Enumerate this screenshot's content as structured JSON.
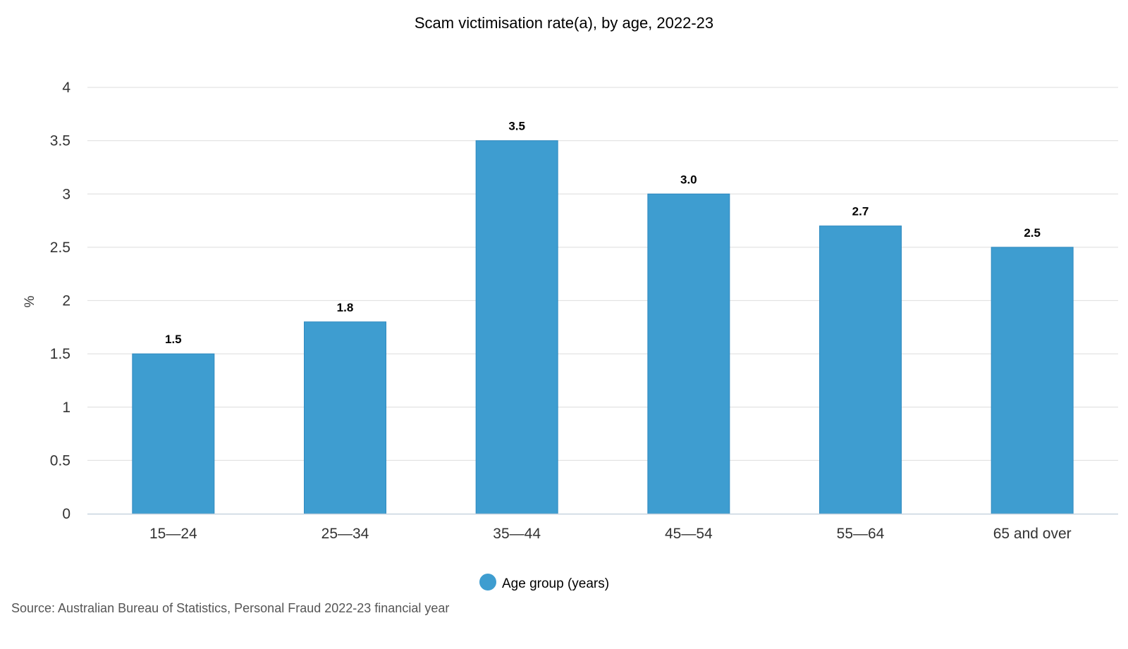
{
  "chart_data": {
    "type": "bar",
    "title": "Scam victimisation rate(a), by age, 2022-23",
    "xlabel": "",
    "ylabel": "%",
    "ylim": [
      0,
      4
    ],
    "yticks": [
      "0",
      "0.5",
      "1",
      "1.5",
      "2",
      "2.5",
      "3",
      "3.5",
      "4"
    ],
    "categories": [
      "15—24",
      "25—34",
      "35—44",
      "45—54",
      "55—64",
      "65 and over"
    ],
    "series": [
      {
        "name": "Age group (years)",
        "values": [
          1.5,
          1.8,
          3.5,
          3.0,
          2.7,
          2.5
        ],
        "data_labels": [
          "1.5",
          "1.8",
          "3.5",
          "3.0",
          "2.7",
          "2.5"
        ],
        "color": "#3e9dd0"
      }
    ],
    "grid": true,
    "legend_position": "bottom"
  },
  "source": "Source: Australian Bureau of Statistics, Personal Fraud 2022-23 financial year"
}
